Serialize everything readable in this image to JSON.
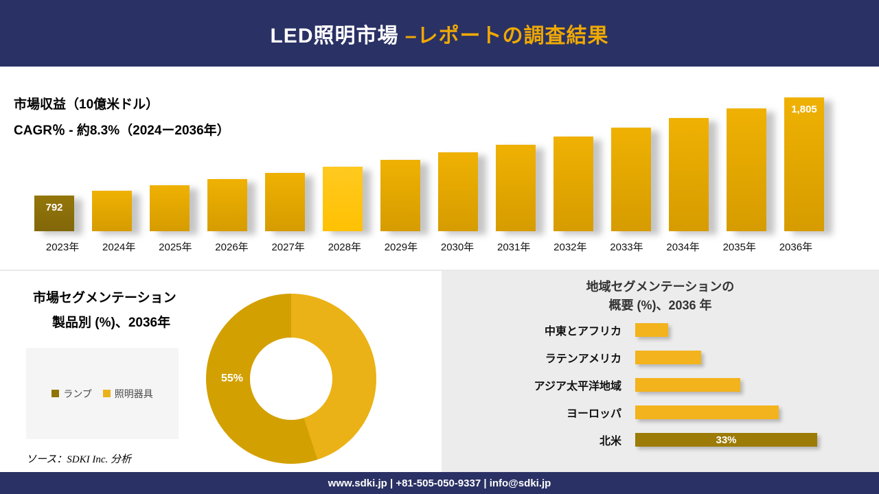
{
  "header": {
    "title_main": "LED照明市場 ",
    "title_accent": "–レポートの調査結果"
  },
  "revenue": {
    "metric_label": "市場収益（10億米ドル）",
    "cagr_label": "CAGR％ - 約8.3%（2024ー2036年）"
  },
  "segmentation": {
    "title_line1": "市場セグメンテーション",
    "title_line2": "製品別 (%)、2036年",
    "legend": [
      {
        "label": "ランプ",
        "color": "#8f7304"
      },
      {
        "label": "照明器具",
        "color": "#eab31b"
      }
    ],
    "source": "ソース：SDKI Inc. 分析"
  },
  "region": {
    "title_line1": "地域セグメンテーションの",
    "title_line2": "概要 (%)、2036 年"
  },
  "footer": {
    "text": "www.sdki.jp | +81-505-050-9337 | info@sdki.jp"
  },
  "colors": {
    "navy": "#2a3164",
    "gold_accent": "#efa904",
    "bar_gold": "#d69c00",
    "bar_bright": "#ffc103",
    "bar_dark": "#8a6d05"
  },
  "chart_data": [
    {
      "type": "bar",
      "title": "市場収益（10億米ドル）",
      "subtitle": "CAGR％ - 約8.3%（2024ー2036年）",
      "categories": [
        "2023年",
        "2024年",
        "2025年",
        "2026年",
        "2027年",
        "2028年",
        "2029年",
        "2030年",
        "2031年",
        "2032年",
        "2033年",
        "2034年",
        "2035年",
        "2036年"
      ],
      "values": [
        792,
        845,
        900,
        960,
        1025,
        1090,
        1160,
        1235,
        1315,
        1400,
        1490,
        1590,
        1695,
        1805
      ],
      "value_labels": [
        "792",
        "",
        "",
        "",
        "",
        "",
        "",
        "",
        "",
        "",
        "",
        "",
        "",
        "1,805"
      ],
      "bar_styles": [
        "dark",
        "normal",
        "normal",
        "normal",
        "normal",
        "bright",
        "normal",
        "normal",
        "normal",
        "normal",
        "normal",
        "normal",
        "normal",
        "normal"
      ],
      "ylabel": "10億米ドル",
      "ylim": [
        0,
        1900
      ],
      "grid": false,
      "legend_position": "none"
    },
    {
      "type": "pie",
      "title": "市場セグメンテーション 製品別 (%)、2036年",
      "labels": [
        "ランプ",
        "照明器具"
      ],
      "values": [
        55,
        45
      ],
      "colors": [
        "#d3a002",
        "#eab216"
      ],
      "shown_label": "55%",
      "donut": true
    },
    {
      "type": "bar-horizontal",
      "title": "地域セグメンテーションの概要 (%)、2036 年",
      "categories": [
        "中東とアフリカ",
        "ラテンアメリカ",
        "アジア太平洋地域",
        "ヨーロッパ",
        "北米"
      ],
      "values": [
        6,
        12,
        19,
        26,
        33
      ],
      "value_labels": [
        "",
        "",
        "",
        "",
        "33%"
      ],
      "bar_colors": [
        "#f3b31c",
        "#f3b31c",
        "#f3b31c",
        "#f3b31c",
        "#9c7b06"
      ],
      "xlim": [
        0,
        35
      ],
      "grid": false
    }
  ]
}
